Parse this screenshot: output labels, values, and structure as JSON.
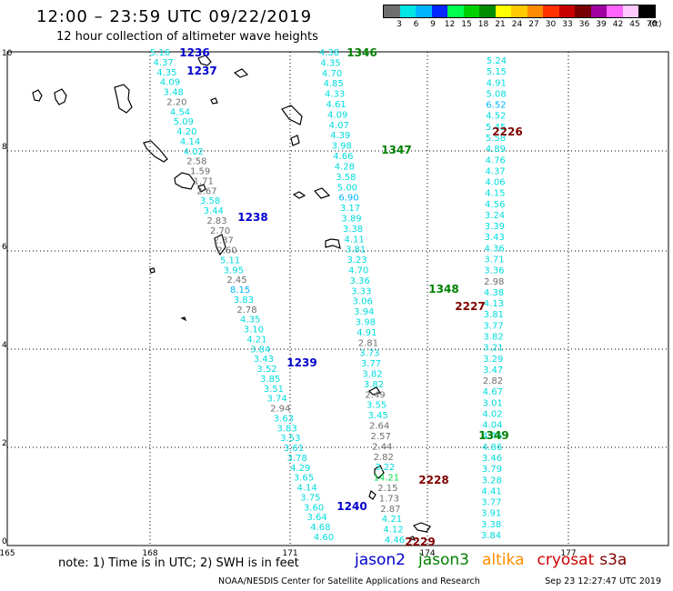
{
  "header": {
    "title": "12:00 – 23:59 UTC 09/22/2019",
    "subtitle": "12 hour collection of altimeter wave heights"
  },
  "legend": {
    "unit": "(ft)",
    "colors": [
      "#6e6e6e",
      "#00e6e6",
      "#00b4ff",
      "#0028ff",
      "#00ff50",
      "#00d000",
      "#008c00",
      "#ffff00",
      "#ffc800",
      "#ff8c00",
      "#ff3200",
      "#c80000",
      "#780000",
      "#a000a0",
      "#ff64ff",
      "#ffc8ff",
      "#000000"
    ],
    "labels": [
      "3",
      "6",
      "9",
      "12",
      "15",
      "18",
      "21",
      "24",
      "27",
      "30",
      "33",
      "36",
      "39",
      "42",
      "45",
      "70"
    ]
  },
  "axes": {
    "x_ticks": [
      "165",
      "168",
      "171",
      "174",
      "177"
    ],
    "y_ticks": [
      "0",
      "2",
      "4",
      "6",
      "8",
      "10"
    ]
  },
  "passes": [
    {
      "id": "1236",
      "color": "#0000cc"
    },
    {
      "id": "1237",
      "color": "#0000cc"
    },
    {
      "id": "1238",
      "color": "#0000cc"
    },
    {
      "id": "1239",
      "color": "#0000cc"
    },
    {
      "id": "1240",
      "color": "#0000cc"
    },
    {
      "id": "1346",
      "color": "#008000"
    },
    {
      "id": "1347",
      "color": "#008000"
    },
    {
      "id": "1348",
      "color": "#008000"
    },
    {
      "id": "1349",
      "color": "#008000"
    },
    {
      "id": "2226",
      "color": "#800000"
    },
    {
      "id": "2227",
      "color": "#800000"
    },
    {
      "id": "2228",
      "color": "#800000"
    },
    {
      "id": "2229",
      "color": "#800000"
    }
  ],
  "tracks": [
    {
      "name": "jason2-west",
      "values": [
        "5.16",
        "4.37",
        "4.35",
        "4.09",
        "3.48",
        "2.20",
        "4.54",
        "5.09",
        "4.20",
        "4.14",
        "4.02",
        "2.58",
        "1.59",
        "1.71",
        "2.67",
        "3.58",
        "3.44",
        "2.83",
        "2.70",
        "2.37",
        "2.60",
        "5.11",
        "3.95",
        "2.45",
        "8.15",
        "3.83",
        "2.78",
        "4.35",
        "3.10",
        "4.21",
        "3.84",
        "3.43",
        "3.52",
        "3.85",
        "3.51",
        "3.74",
        "2.94",
        "3.63",
        "3.83",
        "3.53",
        "3.61",
        "3.78",
        "4.29",
        "3.65",
        "4.14",
        "3.75",
        "3.60",
        "3.64",
        "4.68",
        "4.60"
      ]
    },
    {
      "name": "jason3-middle",
      "values": [
        "4.38",
        "4.35",
        "4.70",
        "4.85",
        "4.33",
        "4.61",
        "4.09",
        "4.07",
        "4.39",
        "3.98",
        "4.66",
        "4.28",
        "3.58",
        "5.00",
        "6.90",
        "3.17",
        "3.89",
        "3.38",
        "4.11",
        "3.81",
        "3.23",
        "4.70",
        "3.36",
        "3.33",
        "3.06",
        "3.94",
        "3.98",
        "4.91",
        "2.81",
        "3.73",
        "3.77",
        "3.82",
        "3.82",
        "2.49",
        "3.55",
        "3.45",
        "2.64",
        "2.57",
        "2.44",
        "2.82",
        "3.22",
        "14.21",
        "2.15",
        "1.73",
        "2.87",
        "4.21",
        "4.12",
        "4.46"
      ]
    },
    {
      "name": "jason3-east",
      "values": [
        "5.24",
        "5.15",
        "4.91",
        "5.08",
        "6.52",
        "4.52",
        "5.45",
        "5.58",
        "4.89",
        "4.76",
        "4.37",
        "4.06",
        "4.15",
        "4.56",
        "3.24",
        "3.39",
        "3.43",
        "4.36",
        "3.71",
        "3.36",
        "2.98",
        "4.38",
        "4.13",
        "3.81",
        "3.77",
        "3.82",
        "3.21",
        "3.29",
        "3.47",
        "2.82",
        "4.67",
        "3.01",
        "4.02",
        "4.04",
        "4.46",
        "4.86",
        "3.46",
        "3.79",
        "3.28",
        "4.41",
        "3.77",
        "3.91",
        "3.38",
        "3.84"
      ]
    }
  ],
  "notes": {
    "note": "note: 1) Time is in UTC; 2) SWH is in feet",
    "satellites": [
      {
        "name": "jason2",
        "color": "#0000cc"
      },
      {
        "name": "jason3",
        "color": "#008000"
      },
      {
        "name": "altika",
        "color": "#ff8c00"
      },
      {
        "name": "cryosat",
        "color": "#cc0000"
      },
      {
        "name": "s3a",
        "color": "#800000"
      }
    ],
    "credit": "NOAA/NESDIS Center for Satellite Applications and Research",
    "timestamp": "Sep 23 12:27:47 UTC 2019"
  }
}
